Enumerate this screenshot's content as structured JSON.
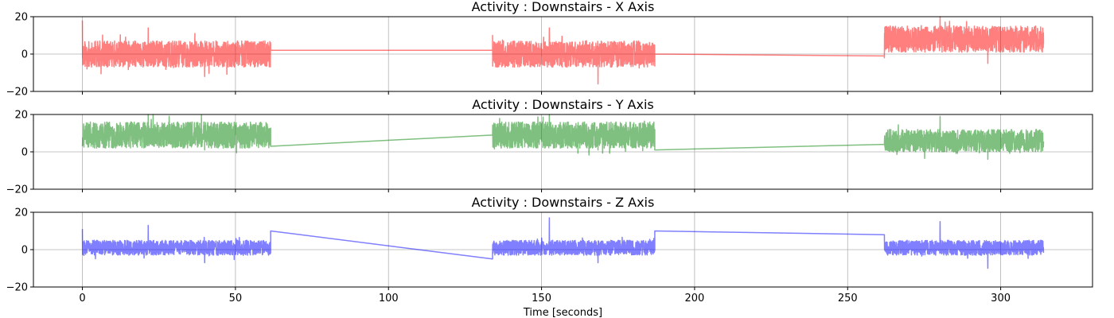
{
  "chart_data": [
    {
      "type": "line",
      "title": "Activity : Downstairs - X Axis",
      "xlabel": "",
      "ylabel": "",
      "xlim": [
        -16,
        330
      ],
      "ylim": [
        -20,
        20
      ],
      "xticks": [
        0,
        50,
        100,
        150,
        200,
        250,
        300
      ],
      "xtick_labels": [],
      "yticks": [
        -20,
        0,
        20
      ],
      "ytick_labels": [
        "−20",
        "0",
        "20"
      ],
      "grid": true,
      "series": [
        {
          "color": "#ff0000",
          "opacity": 0.5,
          "segments": [
            {
              "x_start": 0,
              "x_end": 61.5,
              "mean": 0,
              "amplitude": 7,
              "seed": 11,
              "start_spike": 18,
              "peak": 14,
              "trough": -12
            },
            {
              "x_start": 61.5,
              "x_end": 134,
              "line": [
                2,
                2
              ]
            },
            {
              "x_start": 134,
              "x_end": 187,
              "mean": 0,
              "amplitude": 7,
              "seed": 12,
              "start_spike": 10,
              "peak": 14,
              "trough": -16
            },
            {
              "x_start": 187,
              "x_end": 262,
              "line": [
                0,
                -1
              ]
            },
            {
              "x_start": 262,
              "x_end": 314,
              "mean": 8,
              "amplitude": 7,
              "seed": 13,
              "start_spike": -2,
              "peak": 20,
              "trough": -5
            }
          ]
        }
      ]
    },
    {
      "type": "line",
      "title": "Activity : Downstairs - Y Axis",
      "xlabel": "",
      "ylabel": "",
      "xlim": [
        -16,
        330
      ],
      "ylim": [
        -20,
        20
      ],
      "xticks": [
        0,
        50,
        100,
        150,
        200,
        250,
        300
      ],
      "xtick_labels": [],
      "yticks": [
        -20,
        0,
        20
      ],
      "ytick_labels": [
        "−20",
        "0",
        "20"
      ],
      "grid": true,
      "series": [
        {
          "color": "#008000",
          "opacity": 0.5,
          "segments": [
            {
              "x_start": 0,
              "x_end": 61.5,
              "mean": 9,
              "amplitude": 7,
              "seed": 21,
              "start_spike": 3,
              "peak": 20,
              "trough": 1
            },
            {
              "x_start": 61.5,
              "x_end": 134,
              "line": [
                3,
                9
              ]
            },
            {
              "x_start": 134,
              "x_end": 187,
              "mean": 9,
              "amplitude": 7,
              "seed": 22,
              "start_spike": 9,
              "peak": 20,
              "trough": 1
            },
            {
              "x_start": 187,
              "x_end": 262,
              "line": [
                1,
                4
              ]
            },
            {
              "x_start": 262,
              "x_end": 314,
              "mean": 6,
              "amplitude": 6,
              "seed": 23,
              "start_spike": 4,
              "peak": 19,
              "trough": -4
            }
          ]
        }
      ]
    },
    {
      "type": "line",
      "title": "Activity : Downstairs - Z Axis",
      "xlabel": "Time [seconds]",
      "ylabel": "",
      "xlim": [
        -16,
        330
      ],
      "ylim": [
        -20,
        20
      ],
      "xticks": [
        0,
        50,
        100,
        150,
        200,
        250,
        300
      ],
      "xtick_labels": [
        "0",
        "50",
        "100",
        "150",
        "200",
        "250",
        "300"
      ],
      "yticks": [
        -20,
        0,
        20
      ],
      "ytick_labels": [
        "−20",
        "0",
        "20"
      ],
      "grid": true,
      "series": [
        {
          "color": "#0000ff",
          "opacity": 0.5,
          "segments": [
            {
              "x_start": 0,
              "x_end": 61.5,
              "mean": 1,
              "amplitude": 4,
              "seed": 31,
              "start_spike": 11,
              "peak": 13,
              "trough": -7
            },
            {
              "x_start": 61.5,
              "x_end": 134,
              "line": [
                10,
                -5
              ]
            },
            {
              "x_start": 134,
              "x_end": 187,
              "mean": 1,
              "amplitude": 4,
              "seed": 32,
              "start_spike": -2,
              "peak": 17,
              "trough": -7
            },
            {
              "x_start": 187,
              "x_end": 262,
              "line": [
                10,
                8
              ]
            },
            {
              "x_start": 262,
              "x_end": 314,
              "mean": 1,
              "amplitude": 4,
              "seed": 33,
              "start_spike": 8,
              "peak": 15,
              "trough": -10
            }
          ]
        }
      ]
    }
  ]
}
